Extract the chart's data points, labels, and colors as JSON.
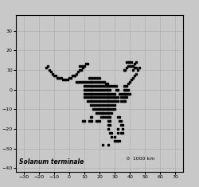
{
  "species_label": "Solanum terminale",
  "scale_label": "0  1000 km",
  "xlim": [
    -35,
    75
  ],
  "ylim": [
    -42,
    38
  ],
  "xticks": [
    -30,
    -20,
    -10,
    0,
    10,
    20,
    30,
    40,
    50,
    60,
    70
  ],
  "yticks": [
    -40,
    -30,
    -20,
    -10,
    0,
    10,
    20,
    30
  ],
  "background_color": "#c8c8c8",
  "land_color": "#f0f0f0",
  "ocean_color": "#c8c8c8",
  "border_color": "#555555",
  "coast_color": "#333333",
  "grid_color": "#aaaaaa",
  "point_color": "black",
  "point_size": 2.2,
  "occurrence_points": [
    [
      -15,
      11
    ],
    [
      -14,
      12
    ],
    [
      -13,
      10
    ],
    [
      -12,
      9
    ],
    [
      -11,
      8
    ],
    [
      -10,
      7
    ],
    [
      -9,
      7
    ],
    [
      -8,
      6
    ],
    [
      -7,
      6
    ],
    [
      -6,
      6
    ],
    [
      -5,
      6
    ],
    [
      -4,
      5
    ],
    [
      -3,
      5
    ],
    [
      -2,
      5
    ],
    [
      -1,
      5
    ],
    [
      0,
      6
    ],
    [
      1,
      6
    ],
    [
      2,
      7
    ],
    [
      3,
      7
    ],
    [
      4,
      7
    ],
    [
      5,
      8
    ],
    [
      6,
      9
    ],
    [
      7,
      10
    ],
    [
      8,
      10
    ],
    [
      9,
      11
    ],
    [
      10,
      12
    ],
    [
      11,
      13
    ],
    [
      12,
      13
    ],
    [
      8,
      4
    ],
    [
      9,
      4
    ],
    [
      10,
      4
    ],
    [
      11,
      4
    ],
    [
      12,
      4
    ],
    [
      13,
      4
    ],
    [
      14,
      4
    ],
    [
      15,
      4
    ],
    [
      16,
      4
    ],
    [
      17,
      4
    ],
    [
      18,
      4
    ],
    [
      19,
      4
    ],
    [
      20,
      4
    ],
    [
      21,
      4
    ],
    [
      22,
      4
    ],
    [
      23,
      4
    ],
    [
      24,
      3
    ],
    [
      25,
      3
    ],
    [
      26,
      2
    ],
    [
      27,
      2
    ],
    [
      28,
      2
    ],
    [
      29,
      2
    ],
    [
      30,
      2
    ],
    [
      31,
      2
    ],
    [
      10,
      2
    ],
    [
      11,
      2
    ],
    [
      12,
      2
    ],
    [
      13,
      2
    ],
    [
      14,
      2
    ],
    [
      15,
      2
    ],
    [
      16,
      2
    ],
    [
      17,
      2
    ],
    [
      18,
      2
    ],
    [
      19,
      2
    ],
    [
      20,
      2
    ],
    [
      21,
      2
    ],
    [
      22,
      2
    ],
    [
      23,
      2
    ],
    [
      24,
      2
    ],
    [
      25,
      2
    ],
    [
      10,
      0
    ],
    [
      11,
      0
    ],
    [
      12,
      0
    ],
    [
      13,
      0
    ],
    [
      14,
      0
    ],
    [
      15,
      0
    ],
    [
      16,
      0
    ],
    [
      17,
      0
    ],
    [
      18,
      0
    ],
    [
      19,
      0
    ],
    [
      20,
      0
    ],
    [
      21,
      0
    ],
    [
      22,
      0
    ],
    [
      23,
      0
    ],
    [
      24,
      0
    ],
    [
      25,
      0
    ],
    [
      26,
      0
    ],
    [
      27,
      0
    ],
    [
      10,
      -2
    ],
    [
      11,
      -2
    ],
    [
      12,
      -2
    ],
    [
      13,
      -2
    ],
    [
      14,
      -2
    ],
    [
      15,
      -2
    ],
    [
      16,
      -2
    ],
    [
      17,
      -2
    ],
    [
      18,
      -2
    ],
    [
      19,
      -2
    ],
    [
      20,
      -2
    ],
    [
      21,
      -2
    ],
    [
      22,
      -2
    ],
    [
      23,
      -2
    ],
    [
      24,
      -2
    ],
    [
      25,
      -2
    ],
    [
      26,
      -2
    ],
    [
      27,
      -2
    ],
    [
      28,
      -2
    ],
    [
      29,
      -2
    ],
    [
      30,
      -2
    ],
    [
      33,
      -2
    ],
    [
      34,
      -2
    ],
    [
      10,
      -4
    ],
    [
      11,
      -4
    ],
    [
      12,
      -4
    ],
    [
      13,
      -4
    ],
    [
      14,
      -4
    ],
    [
      15,
      -4
    ],
    [
      16,
      -4
    ],
    [
      17,
      -4
    ],
    [
      18,
      -4
    ],
    [
      19,
      -4
    ],
    [
      20,
      -4
    ],
    [
      21,
      -4
    ],
    [
      22,
      -4
    ],
    [
      23,
      -4
    ],
    [
      24,
      -4
    ],
    [
      25,
      -4
    ],
    [
      26,
      -4
    ],
    [
      27,
      -4
    ],
    [
      28,
      -4
    ],
    [
      29,
      -4
    ],
    [
      30,
      -4
    ],
    [
      31,
      -4
    ],
    [
      32,
      -4
    ],
    [
      34,
      -4
    ],
    [
      35,
      -4
    ],
    [
      36,
      -4
    ],
    [
      37,
      -4
    ],
    [
      38,
      -4
    ],
    [
      12,
      -6
    ],
    [
      13,
      -6
    ],
    [
      14,
      -6
    ],
    [
      15,
      -6
    ],
    [
      16,
      -6
    ],
    [
      17,
      -6
    ],
    [
      18,
      -6
    ],
    [
      19,
      -6
    ],
    [
      20,
      -6
    ],
    [
      21,
      -6
    ],
    [
      22,
      -6
    ],
    [
      23,
      -6
    ],
    [
      24,
      -6
    ],
    [
      25,
      -6
    ],
    [
      26,
      -6
    ],
    [
      27,
      -6
    ],
    [
      28,
      -6
    ],
    [
      29,
      -6
    ],
    [
      30,
      -6
    ],
    [
      31,
      -6
    ],
    [
      32,
      -6
    ],
    [
      34,
      -6
    ],
    [
      35,
      -6
    ],
    [
      36,
      -6
    ],
    [
      37,
      -6
    ],
    [
      14,
      -8
    ],
    [
      15,
      -8
    ],
    [
      16,
      -8
    ],
    [
      17,
      -8
    ],
    [
      18,
      -8
    ],
    [
      19,
      -8
    ],
    [
      20,
      -8
    ],
    [
      21,
      -8
    ],
    [
      22,
      -8
    ],
    [
      23,
      -8
    ],
    [
      24,
      -8
    ],
    [
      25,
      -8
    ],
    [
      26,
      -8
    ],
    [
      27,
      -8
    ],
    [
      28,
      -8
    ],
    [
      29,
      -8
    ],
    [
      30,
      -8
    ],
    [
      16,
      -10
    ],
    [
      17,
      -10
    ],
    [
      18,
      -10
    ],
    [
      19,
      -10
    ],
    [
      20,
      -10
    ],
    [
      21,
      -10
    ],
    [
      22,
      -10
    ],
    [
      23,
      -10
    ],
    [
      24,
      -10
    ],
    [
      25,
      -10
    ],
    [
      26,
      -10
    ],
    [
      27,
      -10
    ],
    [
      28,
      -10
    ],
    [
      29,
      -10
    ],
    [
      30,
      -10
    ],
    [
      18,
      -12
    ],
    [
      19,
      -12
    ],
    [
      20,
      -12
    ],
    [
      21,
      -12
    ],
    [
      22,
      -12
    ],
    [
      23,
      -12
    ],
    [
      24,
      -12
    ],
    [
      25,
      -12
    ],
    [
      26,
      -12
    ],
    [
      27,
      -12
    ],
    [
      28,
      -12
    ],
    [
      22,
      -14
    ],
    [
      23,
      -14
    ],
    [
      24,
      -14
    ],
    [
      25,
      -14
    ],
    [
      26,
      -14
    ],
    [
      27,
      -14
    ],
    [
      32,
      -14
    ],
    [
      33,
      -14
    ],
    [
      13,
      -16
    ],
    [
      14,
      -14
    ],
    [
      15,
      -14
    ],
    [
      18,
      -16
    ],
    [
      19,
      -16
    ],
    [
      20,
      -16
    ],
    [
      21,
      -14
    ],
    [
      22,
      -12
    ],
    [
      26,
      -16
    ],
    [
      27,
      -16
    ],
    [
      33,
      -16
    ],
    [
      34,
      -16
    ],
    [
      26,
      -18
    ],
    [
      27,
      -18
    ],
    [
      34,
      -18
    ],
    [
      35,
      -18
    ],
    [
      26,
      -20
    ],
    [
      35,
      -20
    ],
    [
      27,
      -22
    ],
    [
      28,
      -22
    ],
    [
      32,
      -22
    ],
    [
      34,
      -22
    ],
    [
      35,
      -22
    ],
    [
      28,
      -24
    ],
    [
      30,
      -24
    ],
    [
      32,
      -20
    ],
    [
      30,
      -26
    ],
    [
      31,
      -26
    ],
    [
      32,
      -26
    ],
    [
      33,
      -26
    ],
    [
      22,
      -28
    ],
    [
      26,
      -28
    ],
    [
      36,
      2
    ],
    [
      37,
      2
    ],
    [
      38,
      2
    ],
    [
      39,
      3
    ],
    [
      40,
      4
    ],
    [
      41,
      5
    ],
    [
      42,
      6
    ],
    [
      43,
      7
    ],
    [
      44,
      8
    ],
    [
      45,
      10
    ],
    [
      46,
      11
    ],
    [
      36,
      0
    ],
    [
      37,
      0
    ],
    [
      38,
      0
    ],
    [
      39,
      0
    ],
    [
      35,
      -2
    ],
    [
      36,
      -2
    ],
    [
      37,
      -2
    ],
    [
      38,
      -2
    ],
    [
      39,
      -2
    ],
    [
      40,
      -2
    ],
    [
      36,
      10
    ],
    [
      37,
      10
    ],
    [
      38,
      11
    ],
    [
      39,
      12
    ],
    [
      40,
      12
    ],
    [
      41,
      12
    ],
    [
      42,
      12
    ],
    [
      43,
      13
    ],
    [
      44,
      14
    ],
    [
      42,
      10
    ],
    [
      43,
      11
    ],
    [
      44,
      11
    ],
    [
      38,
      14
    ],
    [
      39,
      14
    ],
    [
      40,
      14
    ],
    [
      41,
      14
    ],
    [
      5,
      4
    ],
    [
      6,
      4
    ],
    [
      7,
      4
    ],
    [
      9,
      -16
    ],
    [
      10,
      -16
    ],
    [
      14,
      -16
    ],
    [
      15,
      -16
    ],
    [
      30,
      -4
    ],
    [
      31,
      0
    ],
    [
      32,
      0
    ],
    [
      13,
      6
    ],
    [
      14,
      6
    ],
    [
      15,
      6
    ],
    [
      16,
      6
    ],
    [
      17,
      6
    ],
    [
      18,
      6
    ],
    [
      19,
      6
    ],
    [
      20,
      6
    ],
    [
      7,
      12
    ],
    [
      8,
      12
    ],
    [
      9,
      12
    ]
  ]
}
